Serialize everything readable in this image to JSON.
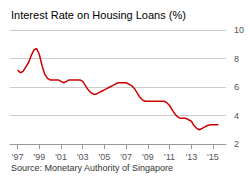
{
  "chart_data": {
    "type": "line",
    "title": "Interest Rate on Housing Loans (%)",
    "source": "Source: Monetary Authority of Singapore",
    "color": "#cc0000",
    "x": [
      1997.0,
      1997.25,
      1997.5,
      1997.75,
      1998.0,
      1998.25,
      1998.5,
      1998.75,
      1999.0,
      1999.25,
      1999.5,
      1999.75,
      2000.0,
      2000.25,
      2000.5,
      2000.75,
      2001.0,
      2001.25,
      2001.5,
      2001.75,
      2002.0,
      2002.25,
      2002.5,
      2002.75,
      2003.0,
      2003.25,
      2003.5,
      2003.75,
      2004.0,
      2004.25,
      2004.5,
      2004.75,
      2005.0,
      2005.25,
      2005.5,
      2005.75,
      2006.0,
      2006.25,
      2006.5,
      2006.75,
      2007.0,
      2007.25,
      2007.5,
      2007.75,
      2008.0,
      2008.25,
      2008.5,
      2008.75,
      2009.0,
      2009.25,
      2009.5,
      2009.75,
      2010.0,
      2010.25,
      2010.5,
      2010.75,
      2011.0,
      2011.25,
      2011.5,
      2011.75,
      2012.0,
      2012.25,
      2012.5,
      2012.75,
      2013.0,
      2013.25,
      2013.5,
      2013.75,
      2014.0,
      2014.25,
      2014.5,
      2014.75,
      2015.0,
      2015.5
    ],
    "values": [
      7.2,
      7.0,
      7.1,
      7.4,
      7.7,
      8.2,
      8.6,
      8.7,
      8.3,
      7.5,
      6.9,
      6.6,
      6.5,
      6.5,
      6.5,
      6.5,
      6.4,
      6.3,
      6.4,
      6.5,
      6.5,
      6.5,
      6.5,
      6.5,
      6.4,
      6.1,
      5.8,
      5.6,
      5.5,
      5.5,
      5.6,
      5.7,
      5.8,
      5.9,
      6.0,
      6.1,
      6.2,
      6.3,
      6.3,
      6.3,
      6.3,
      6.2,
      6.1,
      5.9,
      5.6,
      5.3,
      5.1,
      5.0,
      5.0,
      5.0,
      5.0,
      5.0,
      5.0,
      5.0,
      5.0,
      4.9,
      4.7,
      4.4,
      4.1,
      3.9,
      3.8,
      3.8,
      3.8,
      3.7,
      3.6,
      3.3,
      3.1,
      3.0,
      3.1,
      3.2,
      3.3,
      3.35,
      3.35,
      3.35
    ],
    "xlim": [
      1996.3,
      2016.2
    ],
    "xticks": [
      {
        "value": 1997,
        "label": "'97"
      },
      {
        "value": 1999,
        "label": "'99"
      },
      {
        "value": 2001,
        "label": "'01"
      },
      {
        "value": 2003,
        "label": "'03"
      },
      {
        "value": 2005,
        "label": "'05"
      },
      {
        "value": 2007,
        "label": "'07"
      },
      {
        "value": 2009,
        "label": "'09"
      },
      {
        "value": 2011,
        "label": "'11"
      },
      {
        "value": 2013,
        "label": "'13"
      },
      {
        "value": 2015,
        "label": "'15"
      }
    ],
    "ylim": [
      2,
      10
    ],
    "yticks": [
      2,
      4,
      6,
      8,
      10
    ],
    "grid": true
  }
}
